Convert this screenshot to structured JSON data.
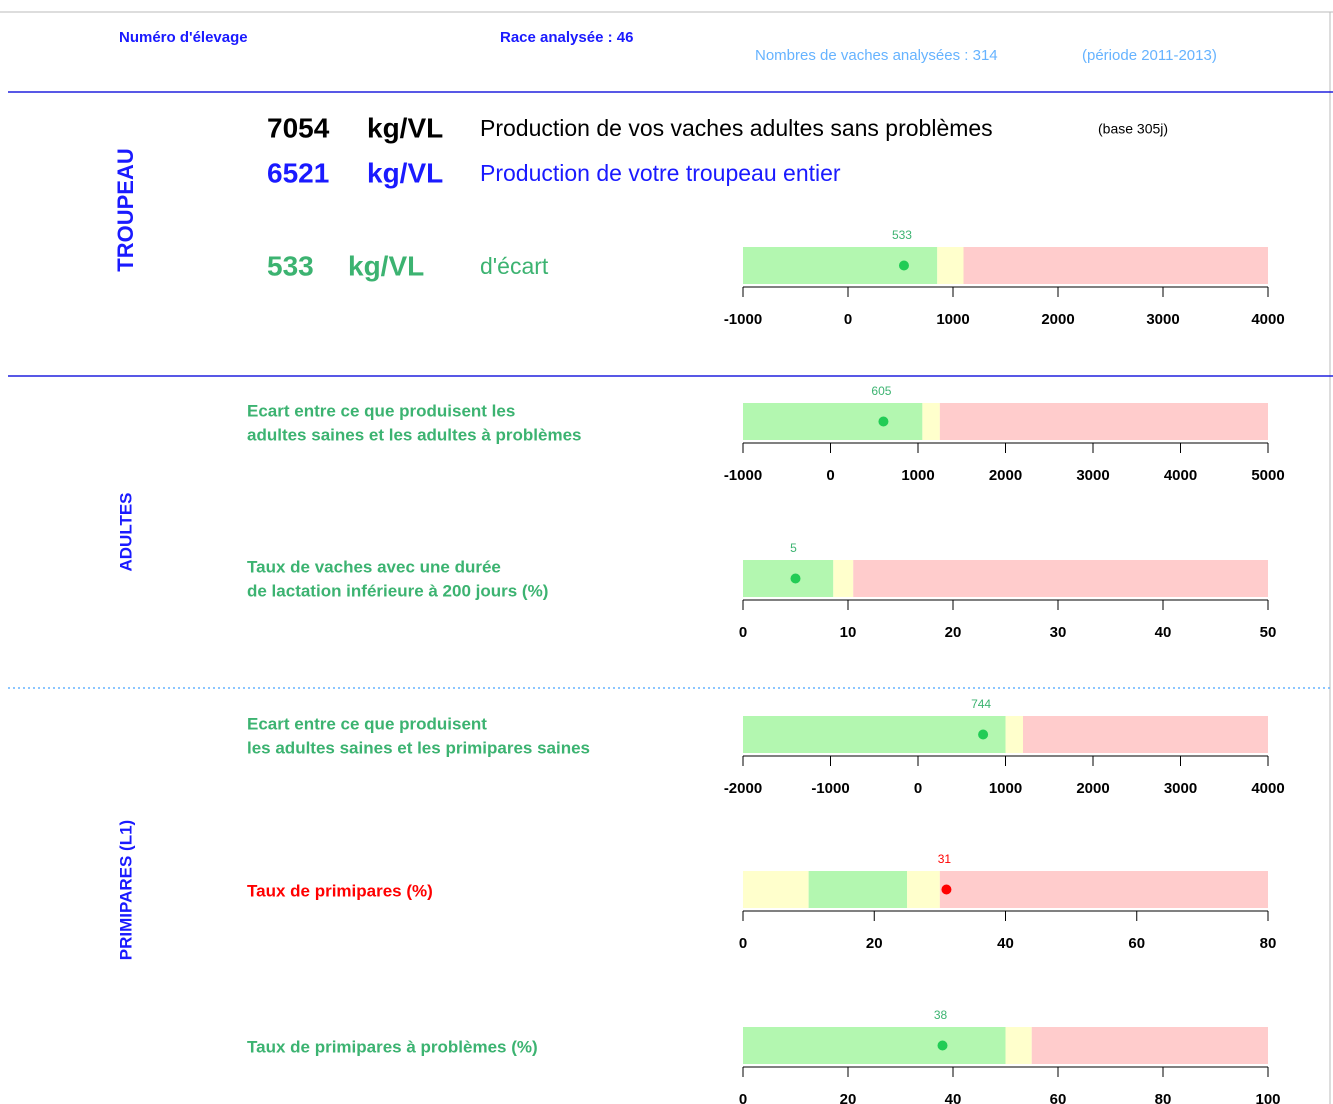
{
  "header": {
    "numero": "Numéro d'élevage",
    "race": "Race analysée : 46",
    "vaches": "Nombres de vaches analysées : 314",
    "periode": "(période 2011-2013)"
  },
  "sections": [
    "TROUPEAU",
    "ADULTES",
    "PRIMIPARES (L1)"
  ],
  "troupeau": {
    "line1": {
      "value": 7054,
      "unit": "kg/VL",
      "text": "Production de vos vaches adultes sans problèmes",
      "note": "(base 305j)"
    },
    "line2": {
      "value": 6521,
      "unit": "kg/VL",
      "text": "Production de votre troupeau entier"
    },
    "ecart": {
      "value": 533,
      "unit": "kg/VL",
      "text": "d'écart"
    }
  },
  "chart_data": [
    {
      "type": "bullet",
      "value": 533,
      "color": "#22cc55",
      "label_color": "#3cb371",
      "xlim": [
        -1000,
        4000
      ],
      "xticks": [
        -1000,
        0,
        1000,
        2000,
        3000,
        4000
      ],
      "bands": [
        {
          "from": -1000,
          "to": 850,
          "color": "#b3f7b0"
        },
        {
          "from": 850,
          "to": 1100,
          "color": "#ffffcc"
        },
        {
          "from": 1100,
          "to": 4000,
          "color": "#ffcccc"
        }
      ]
    },
    {
      "type": "bullet",
      "title": [
        "Ecart entre ce que produisent les",
        "adultes saines et les adultes à problèmes"
      ],
      "title_color": "#3cb371",
      "value": 605,
      "color": "#22cc55",
      "label_color": "#3cb371",
      "xlim": [
        -1000,
        5000
      ],
      "xticks": [
        -1000,
        0,
        1000,
        2000,
        3000,
        4000,
        5000
      ],
      "bands": [
        {
          "from": -1000,
          "to": 1050,
          "color": "#b3f7b0"
        },
        {
          "from": 1050,
          "to": 1250,
          "color": "#ffffcc"
        },
        {
          "from": 1250,
          "to": 5000,
          "color": "#ffcccc"
        }
      ]
    },
    {
      "type": "bullet",
      "title": [
        "Taux de vaches avec une durée",
        "de lactation inférieure à 200 jours (%)"
      ],
      "title_color": "#3cb371",
      "value": 5,
      "color": "#22cc55",
      "label_color": "#3cb371",
      "xlim": [
        0,
        50
      ],
      "xticks": [
        0,
        10,
        20,
        30,
        40,
        50
      ],
      "bands": [
        {
          "from": 0,
          "to": 8.6,
          "color": "#b3f7b0"
        },
        {
          "from": 8.6,
          "to": 10.5,
          "color": "#ffffcc"
        },
        {
          "from": 10.5,
          "to": 50,
          "color": "#ffcccc"
        }
      ]
    },
    {
      "type": "bullet",
      "title": [
        "Ecart entre ce que produisent",
        "les adultes saines et les primipares saines"
      ],
      "title_color": "#3cb371",
      "value": 744,
      "color": "#22cc55",
      "label_color": "#3cb371",
      "xlim": [
        -2000,
        4000
      ],
      "xticks": [
        -2000,
        -1000,
        0,
        1000,
        2000,
        3000,
        4000
      ],
      "bands": [
        {
          "from": -2000,
          "to": 1000,
          "color": "#b3f7b0"
        },
        {
          "from": 1000,
          "to": 1200,
          "color": "#ffffcc"
        },
        {
          "from": 1200,
          "to": 4000,
          "color": "#ffcccc"
        }
      ]
    },
    {
      "type": "bullet",
      "title": [
        "Taux de primipares (%)"
      ],
      "title_color": "#ff0000",
      "value": 31,
      "color": "#ff0000",
      "label_color": "#ff0000",
      "xlim": [
        0,
        80
      ],
      "xticks": [
        0,
        20,
        40,
        60,
        80
      ],
      "bands": [
        {
          "from": 0,
          "to": 10,
          "color": "#ffffcc"
        },
        {
          "from": 10,
          "to": 25,
          "color": "#b3f7b0"
        },
        {
          "from": 25,
          "to": 30,
          "color": "#ffffcc"
        },
        {
          "from": 30,
          "to": 80,
          "color": "#ffcccc"
        }
      ]
    },
    {
      "type": "bullet",
      "title": [
        "Taux de primipares à problèmes (%)"
      ],
      "title_color": "#3cb371",
      "value": 38,
      "color": "#22cc55",
      "label_color": "#3cb371",
      "xlim": [
        0,
        100
      ],
      "xticks": [
        0,
        20,
        40,
        60,
        80,
        100
      ],
      "bands": [
        {
          "from": 0,
          "to": 50,
          "color": "#b3f7b0"
        },
        {
          "from": 50,
          "to": 55,
          "color": "#ffffcc"
        },
        {
          "from": 55,
          "to": 100,
          "color": "#ffcccc"
        }
      ]
    }
  ]
}
